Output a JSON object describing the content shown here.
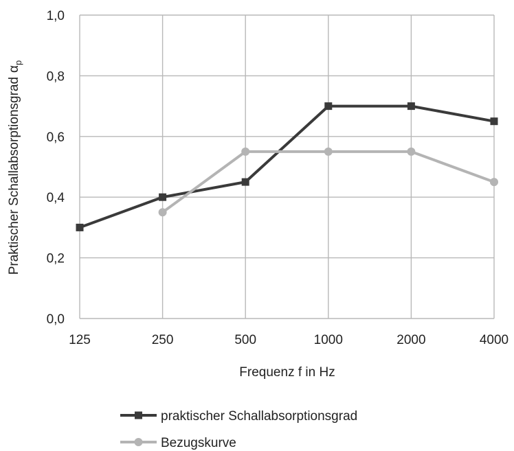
{
  "chart_data": {
    "type": "line",
    "categories": [
      "125",
      "250",
      "500",
      "1000",
      "2000",
      "4000"
    ],
    "series": [
      {
        "name": "praktischer Schallabsorptionsgrad",
        "values": [
          0.3,
          0.4,
          0.45,
          0.7,
          0.7,
          0.65
        ],
        "color": "#3a3a3a",
        "marker": "square"
      },
      {
        "name": "Bezugskurve",
        "values": [
          null,
          0.35,
          0.55,
          0.55,
          0.55,
          0.45
        ],
        "color": "#b4b4b4",
        "marker": "circle"
      }
    ],
    "xlabel": "Frequenz f in Hz",
    "ylabel": "Praktischer Schallabsorptionsgrad",
    "ylabel_symbol": "α",
    "ylabel_subscript": "p",
    "ylim": [
      0,
      1.0
    ],
    "yticks": [
      0,
      0.2,
      0.4,
      0.6,
      0.8,
      1.0
    ],
    "ytick_labels": [
      "0,0",
      "0,2",
      "0,4",
      "0,6",
      "0,8",
      "1,0"
    ],
    "grid": true,
    "legend_position": "bottom",
    "grid_color": "#b8b8b8"
  }
}
